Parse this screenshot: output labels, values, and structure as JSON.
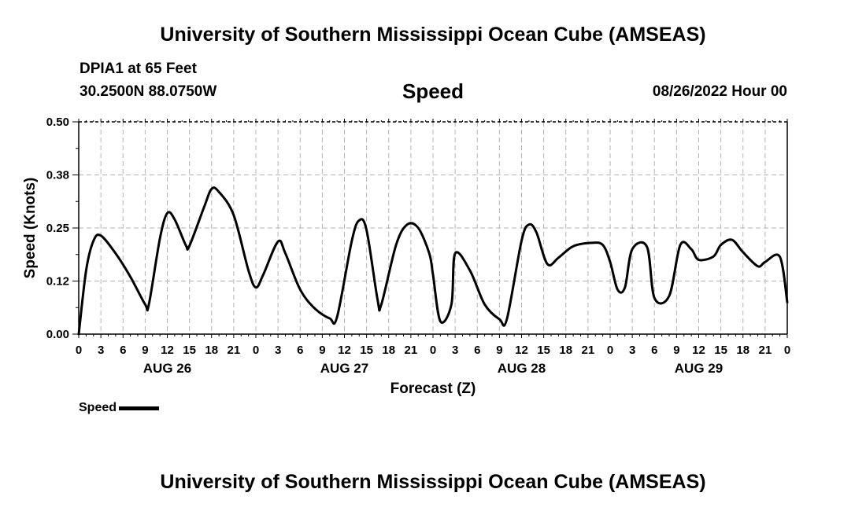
{
  "header": {
    "title_top": "University of Southern Mississippi Ocean Cube (AMSEAS)",
    "title_bottom": "University of Southern Mississippi Ocean Cube (AMSEAS)",
    "station": "DPIA1 at 65 Feet",
    "coords": "30.2500N  88.0750W",
    "date": "08/26/2022 Hour 00"
  },
  "chart_data": {
    "type": "line",
    "title": "Speed",
    "xlabel": "Forecast (Z)",
    "ylabel": "Speed (Knots)",
    "ylim": [
      0,
      0.5
    ],
    "y_ticks": [
      0.0,
      0.125,
      0.25,
      0.375,
      0.5
    ],
    "y_tick_labels": [
      "0.00",
      "0.12",
      "0.25",
      "0.38",
      "0.50"
    ],
    "xlim": [
      0,
      96
    ],
    "x_tick_hours": [
      0,
      3,
      6,
      9,
      12,
      15,
      18,
      21,
      24,
      27,
      30,
      33,
      36,
      39,
      42,
      45,
      48,
      51,
      54,
      57,
      60,
      63,
      66,
      69,
      72,
      75,
      78,
      81,
      84,
      87,
      90,
      93,
      96
    ],
    "x_tick_labels": [
      "0",
      "3",
      "6",
      "9",
      "12",
      "15",
      "18",
      "21",
      "0",
      "3",
      "6",
      "9",
      "12",
      "15",
      "18",
      "21",
      "0",
      "3",
      "6",
      "9",
      "12",
      "15",
      "18",
      "21",
      "0",
      "3",
      "6",
      "9",
      "12",
      "15",
      "18",
      "21",
      "0"
    ],
    "day_labels": [
      {
        "hour": 12,
        "label": "AUG 26"
      },
      {
        "hour": 36,
        "label": "AUG 27"
      },
      {
        "hour": 60,
        "label": "AUG 28"
      },
      {
        "hour": 84,
        "label": "AUG 29"
      }
    ],
    "grid": true,
    "series": [
      {
        "name": "Speed",
        "color": "#000000",
        "x": [
          0,
          1,
          2,
          3,
          5,
          7,
          9,
          9.5,
          11,
          12,
          13,
          14.5,
          15,
          17,
          18,
          19,
          21,
          23,
          24,
          25,
          27,
          28,
          30,
          32,
          34,
          35,
          37,
          38,
          39,
          40.5,
          41,
          43,
          44.5,
          46,
          47.5,
          48,
          49,
          50.5,
          51,
          53,
          55,
          57,
          58,
          60,
          61,
          62,
          63.5,
          65,
          67,
          69.5,
          71,
          72,
          73,
          74,
          75,
          77,
          78,
          80,
          81.5,
          83,
          84,
          86,
          87,
          88.5,
          90,
          92,
          93,
          95,
          96
        ],
        "y": [
          0.0,
          0.15,
          0.22,
          0.232,
          0.19,
          0.135,
          0.07,
          0.07,
          0.225,
          0.285,
          0.27,
          0.21,
          0.208,
          0.3,
          0.342,
          0.335,
          0.28,
          0.15,
          0.11,
          0.14,
          0.218,
          0.19,
          0.105,
          0.06,
          0.037,
          0.04,
          0.22,
          0.268,
          0.245,
          0.08,
          0.07,
          0.21,
          0.258,
          0.25,
          0.19,
          0.14,
          0.03,
          0.07,
          0.19,
          0.15,
          0.07,
          0.035,
          0.035,
          0.22,
          0.258,
          0.24,
          0.165,
          0.18,
          0.207,
          0.215,
          0.21,
          0.17,
          0.105,
          0.11,
          0.2,
          0.205,
          0.085,
          0.09,
          0.21,
          0.2,
          0.175,
          0.183,
          0.21,
          0.222,
          0.193,
          0.16,
          0.17,
          0.182,
          0.075
        ]
      }
    ]
  },
  "legend": {
    "label": "Speed"
  }
}
